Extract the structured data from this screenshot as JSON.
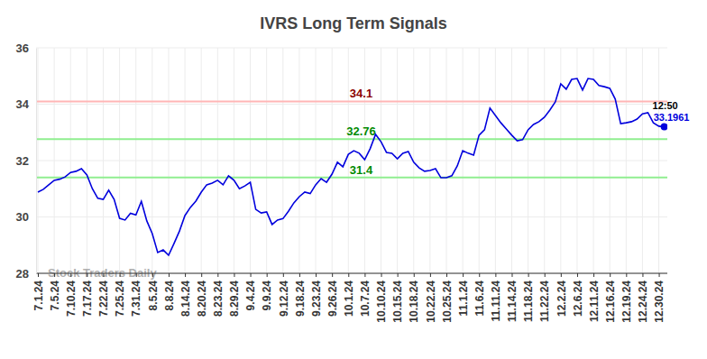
{
  "chart_data": {
    "type": "line",
    "title": "IVRS Long Term Signals",
    "watermark": "Stock Traders Daily",
    "last_time": "12:50",
    "color": "#0000dd",
    "grid": true,
    "marker": "none",
    "line_style": "solid",
    "ylim": [
      28,
      36
    ],
    "yticks": [
      28,
      30,
      32,
      34,
      36
    ],
    "reference_lines": [
      {
        "value": 34.1,
        "color": "#ffb6b6"
      },
      {
        "value": 32.76,
        "color": "#90ee90"
      },
      {
        "value": 31.4,
        "color": "#90ee90"
      }
    ],
    "categories": [
      "7.1.24",
      null,
      null,
      "7.5.24",
      null,
      null,
      "7.10.24",
      null,
      null,
      "7.17.24",
      null,
      null,
      "7.22.24",
      null,
      null,
      "7.25.24",
      null,
      null,
      "7.31.24",
      null,
      null,
      "8.5.24",
      null,
      null,
      "8.8.24",
      null,
      null,
      "8.14.24",
      null,
      null,
      "8.20.24",
      null,
      null,
      "8.23.24",
      null,
      null,
      "8.29.24",
      null,
      null,
      "9.4.24",
      null,
      null,
      "9.9.24",
      null,
      null,
      "9.12.24",
      null,
      null,
      "9.18.24",
      null,
      null,
      "9.23.24",
      null,
      null,
      "9.26.24",
      null,
      null,
      "10.1.24",
      null,
      null,
      "10.7.24",
      null,
      null,
      "10.10.24",
      null,
      null,
      "10.15.24",
      null,
      null,
      "10.18.24",
      null,
      null,
      "10.22.24",
      null,
      null,
      "10.25.24",
      null,
      null,
      "11.1.24",
      null,
      null,
      "11.6.24",
      null,
      null,
      "11.11.24",
      null,
      null,
      "11.14.24",
      null,
      null,
      "11.18.24",
      null,
      null,
      "11.22.24",
      null,
      null,
      "12.2.24",
      null,
      null,
      "12.6.24",
      null,
      null,
      "12.11.24",
      null,
      null,
      "12.16.24",
      null,
      null,
      "12.19.24",
      null,
      null,
      "12.24.24",
      null,
      null,
      "12.30.24",
      null
    ],
    "values": [
      30.88,
      30.98,
      31.14,
      31.3,
      31.34,
      31.42,
      31.58,
      31.62,
      31.71,
      31.49,
      31.0,
      30.66,
      30.62,
      30.95,
      30.62,
      29.95,
      29.89,
      30.13,
      30.07,
      30.55,
      29.86,
      29.41,
      28.74,
      28.83,
      28.64,
      29.06,
      29.5,
      30.05,
      30.34,
      30.56,
      30.88,
      31.14,
      31.2,
      31.3,
      31.14,
      31.46,
      31.3,
      31.0,
      31.1,
      31.23,
      30.27,
      30.14,
      30.18,
      29.73,
      29.89,
      29.94,
      30.2,
      30.5,
      30.72,
      30.88,
      30.83,
      31.14,
      31.36,
      31.23,
      31.52,
      31.94,
      31.78,
      32.22,
      32.35,
      32.26,
      32.03,
      32.42,
      32.93,
      32.67,
      32.29,
      32.26,
      32.06,
      32.26,
      32.32,
      31.94,
      31.74,
      31.62,
      31.65,
      31.71,
      31.39,
      31.39,
      31.46,
      31.81,
      32.35,
      32.26,
      32.19,
      32.9,
      33.09,
      33.86,
      33.6,
      33.34,
      33.12,
      32.9,
      32.7,
      32.74,
      33.09,
      33.28,
      33.38,
      33.54,
      33.79,
      34.08,
      34.72,
      34.53,
      34.88,
      34.91,
      34.5,
      34.91,
      34.88,
      34.66,
      34.62,
      34.56,
      34.18,
      33.31,
      33.34,
      33.38,
      33.47,
      33.66,
      33.7,
      33.34,
      33.22,
      33.1961
    ]
  }
}
